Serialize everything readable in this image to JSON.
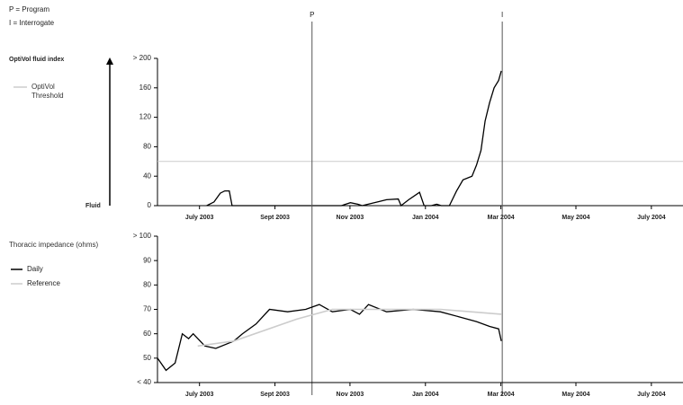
{
  "key": [
    "P = Program",
    "I = Interrogate"
  ],
  "chart_data": [
    {
      "type": "line",
      "ylabel": "OptiVol fluid index",
      "baseline_label": "Fluid",
      "xlim": [
        2003.407,
        2004.57
      ],
      "xticks": [
        {
          "value": 2003.5,
          "label": "July 2003"
        },
        {
          "value": 2003.667,
          "label": "Sept 2003"
        },
        {
          "value": 2003.833,
          "label": "Nov 2003"
        },
        {
          "value": 2004.0,
          "label": "Jan 2004"
        },
        {
          "value": 2004.167,
          "label": "Mar 2004"
        },
        {
          "value": 2004.333,
          "label": "May 2004"
        },
        {
          "value": 2004.5,
          "label": "July 2004"
        }
      ],
      "ylim": [
        0,
        200
      ],
      "yticks": [
        0,
        40,
        80,
        120,
        160,
        {
          "value": 200,
          "label": "> 200"
        }
      ],
      "events": [
        {
          "label": "P",
          "x": 2003.749
        },
        {
          "label": "I",
          "x": 2004.17
        }
      ],
      "threshold": {
        "name": "OptiVol Threshold",
        "value": 60,
        "color": "#cccccc"
      },
      "series": [
        {
          "color": "#000000",
          "x": [
            2003.516,
            2003.532,
            2003.546,
            2003.556,
            2003.566,
            2003.572,
            2003.814,
            2003.834,
            2003.85,
            2003.86,
            2003.894,
            2003.914,
            2003.94,
            2003.946,
            2003.963,
            2003.987,
            2003.997,
            2004.013,
            2004.025,
            2004.035,
            2004.053,
            2004.069,
            2004.083,
            2004.103,
            2004.113,
            2004.123,
            2004.132,
            2004.142,
            2004.152,
            2004.162,
            2004.168
          ],
          "values": [
            0,
            5,
            17,
            20,
            20,
            0,
            0,
            4,
            2,
            0,
            5,
            8,
            9,
            0,
            8,
            18,
            0,
            0,
            2,
            0,
            0,
            20,
            35,
            40,
            55,
            75,
            115,
            140,
            160,
            170,
            183
          ]
        }
      ]
    },
    {
      "type": "line",
      "ylabel": "Thoracic impedance (ohms)",
      "xlim": [
        2003.407,
        2004.57
      ],
      "xticks": [
        {
          "value": 2003.5,
          "label": "July 2003"
        },
        {
          "value": 2003.667,
          "label": "Sept 2003"
        },
        {
          "value": 2003.833,
          "label": "Nov 2003"
        },
        {
          "value": 2004.0,
          "label": "Jan 2004"
        },
        {
          "value": 2004.167,
          "label": "Mar 2004"
        },
        {
          "value": 2004.333,
          "label": "May 2004"
        },
        {
          "value": 2004.5,
          "label": "July 2004"
        }
      ],
      "ylim": [
        40,
        100
      ],
      "yticks": [
        {
          "value": 40,
          "label": "< 40"
        },
        50,
        60,
        70,
        80,
        90,
        {
          "value": 100,
          "label": "> 100"
        }
      ],
      "series": [
        {
          "name": "Daily",
          "color": "#000000",
          "x": [
            2003.407,
            2003.426,
            2003.446,
            2003.462,
            2003.476,
            2003.486,
            2003.512,
            2003.536,
            2003.576,
            2003.595,
            2003.625,
            2003.655,
            2003.695,
            2003.735,
            2003.765,
            2003.794,
            2003.834,
            2003.854,
            2003.874,
            2003.914,
            2003.973,
            2004.033,
            2004.073,
            2004.113,
            2004.142,
            2004.162,
            2004.168
          ],
          "values": [
            50,
            45,
            48,
            60,
            58,
            60,
            55,
            54,
            57,
            60,
            64,
            70,
            69,
            70,
            72,
            69,
            70,
            68,
            72,
            69,
            70,
            69,
            67,
            65,
            63,
            62,
            57
          ]
        },
        {
          "name": "Reference",
          "color": "#cccccc",
          "x": [
            2003.496,
            2003.576,
            2003.715,
            2003.794,
            2004.033,
            2004.168
          ],
          "values": [
            55,
            57,
            66,
            70,
            70,
            68
          ]
        }
      ]
    }
  ]
}
